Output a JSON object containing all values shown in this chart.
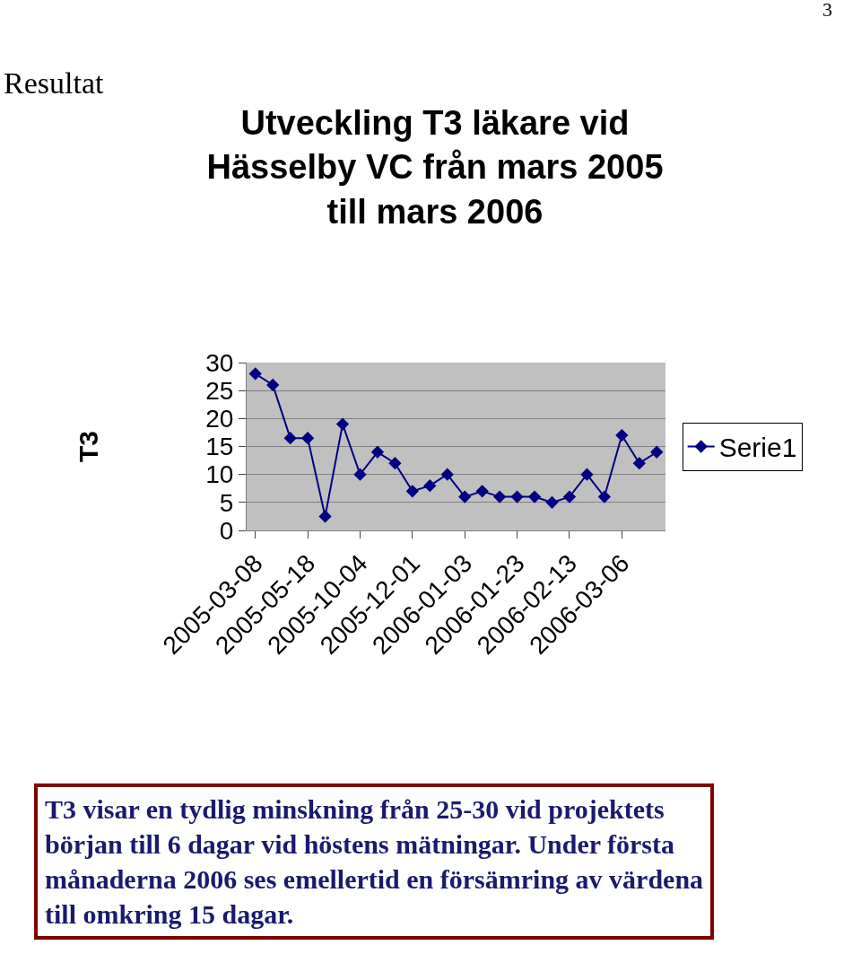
{
  "chart_data": {
    "type": "line",
    "title": "Utveckling T3 läkare vid Hässelby VC från mars 2005 till mars 2006",
    "ylabel": "T3",
    "categories": [
      "2005-03-08",
      null,
      null,
      "2005-05-18",
      null,
      null,
      "2005-10-04",
      null,
      null,
      "2005-12-01",
      null,
      null,
      "2006-01-03",
      null,
      null,
      "2006-01-23",
      null,
      null,
      "2006-02-13",
      null,
      null,
      "2006-03-06",
      null,
      null
    ],
    "series": [
      {
        "name": "Serie1",
        "color": "#000080",
        "values": [
          28,
          26,
          16.5,
          16.5,
          2.5,
          19,
          10,
          14,
          12,
          7,
          8,
          10,
          6,
          7,
          6,
          6,
          6,
          5,
          6,
          10,
          6,
          17,
          12,
          14
        ]
      }
    ],
    "ylim": [
      0,
      30
    ],
    "yticks": [
      0,
      5,
      10,
      15,
      20,
      25,
      30
    ],
    "grid": "y",
    "legend": "right",
    "marker": "diamond",
    "line_style": "solid",
    "annotations": [
      "3",
      "Resultat",
      "T3 visar en tydlig minskning från 25-30 vid projektets början till 6 dagar vid höstens mätningar. Under första månaderna 2006 ses emellertid en försämring av värdena till omkring 15 dagar."
    ]
  }
}
